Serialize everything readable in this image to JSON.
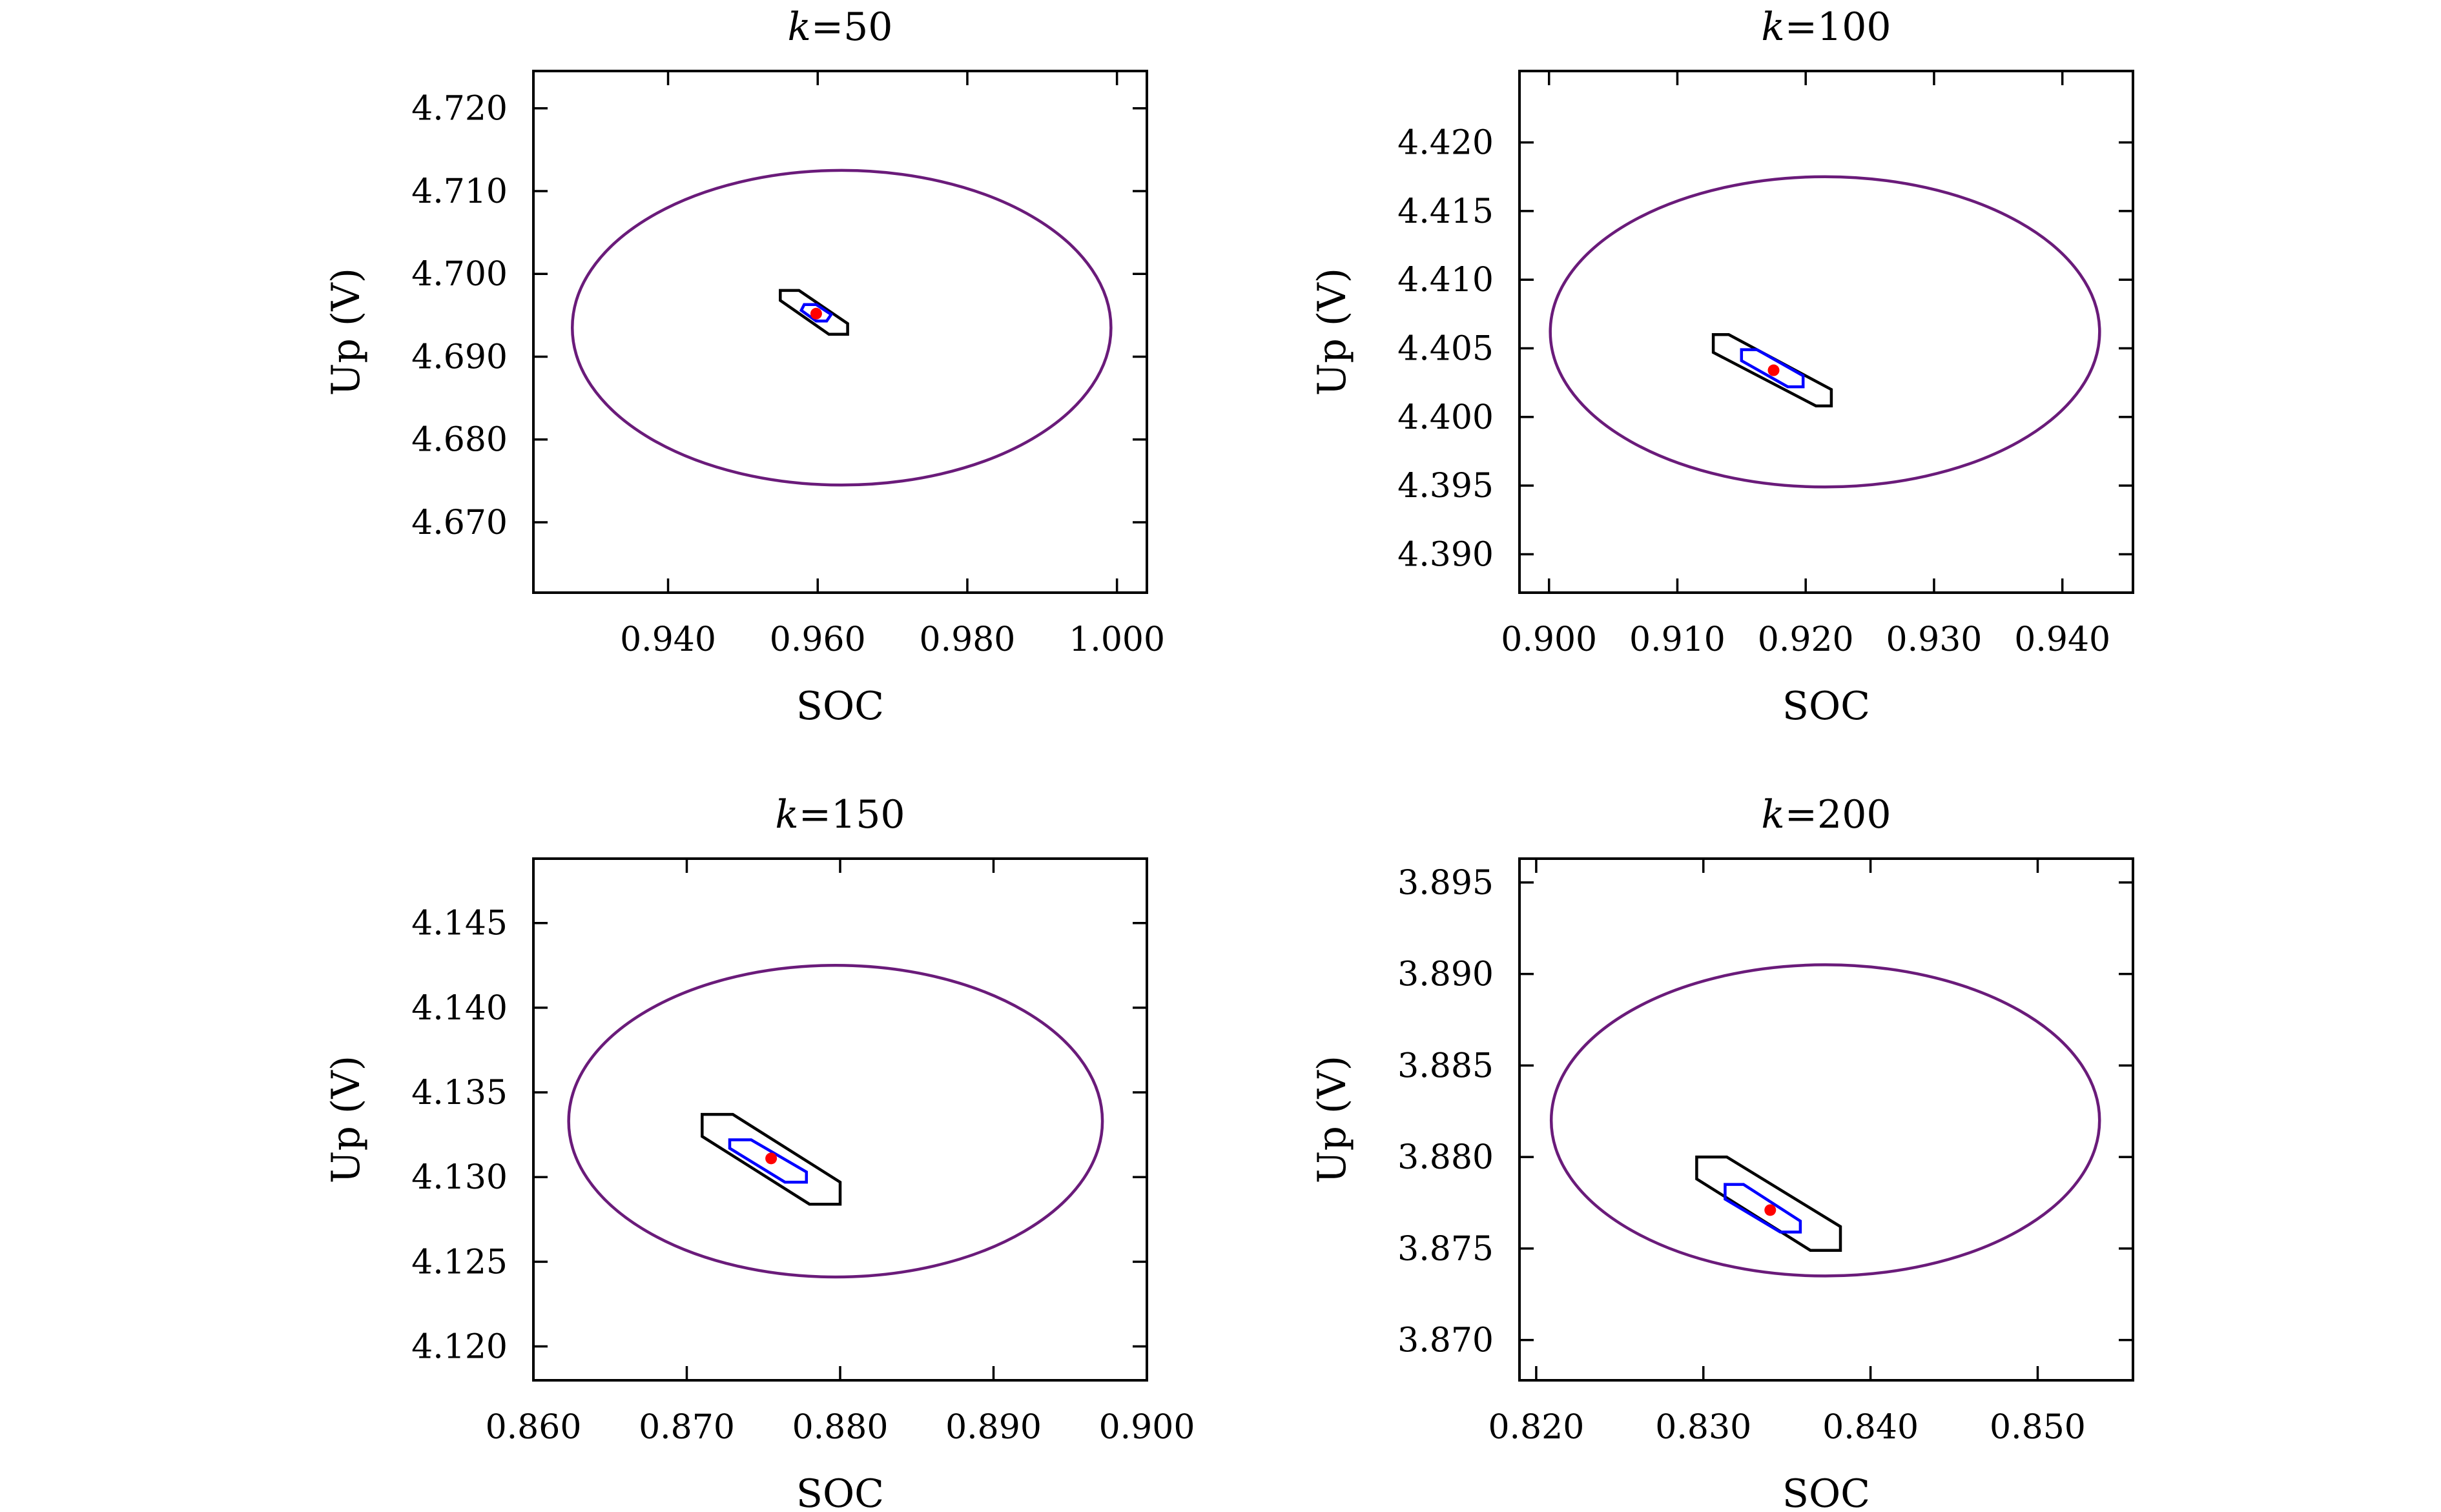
{
  "chart_data": [
    {
      "type": "scatter",
      "title_prefix": "k",
      "title": "=50",
      "xlabel": "SOC",
      "ylabel": "Up (V)",
      "xlim": [
        0.922,
        1.004
      ],
      "ylim": [
        4.6615,
        4.7245
      ],
      "xticks": [
        "0.940",
        "0.960",
        "0.980",
        "1.000"
      ],
      "yticks": [
        "4.670",
        "4.680",
        "4.690",
        "4.700",
        "4.710",
        "4.720"
      ],
      "ellipse": {
        "center": [
          0.9632,
          4.6935
        ],
        "semi_axes": [
          0.036,
          0.019
        ],
        "color": "#6a1b7a"
      },
      "outer_polygon": {
        "points": [
          [
            0.955,
            4.698
          ],
          [
            0.9575,
            4.698
          ],
          [
            0.964,
            4.694
          ],
          [
            0.964,
            4.6927
          ],
          [
            0.9615,
            4.6927
          ],
          [
            0.955,
            4.6968
          ]
        ],
        "color": "#000000"
      },
      "inner_polygon": {
        "points": [
          [
            0.9582,
            4.6963
          ],
          [
            0.9598,
            4.6963
          ],
          [
            0.9618,
            4.6951
          ],
          [
            0.9612,
            4.6943
          ],
          [
            0.9598,
            4.6943
          ],
          [
            0.9578,
            4.6956
          ]
        ],
        "color": "#0000ff"
      },
      "point": {
        "x": 0.9598,
        "y": 4.6952,
        "color": "#ff0000"
      }
    },
    {
      "type": "scatter",
      "title_prefix": "k",
      "title": "=100",
      "xlabel": "SOC",
      "ylabel": "Up (V)",
      "xlim": [
        0.8977,
        0.9455
      ],
      "ylim": [
        4.3872,
        4.4252
      ],
      "xticks": [
        "0.900",
        "0.910",
        "0.920",
        "0.930",
        "0.940"
      ],
      "yticks": [
        "4.390",
        "4.395",
        "4.400",
        "4.405",
        "4.410",
        "4.415",
        "4.420"
      ],
      "ellipse": {
        "center": [
          0.9215,
          4.4062
        ],
        "semi_axes": [
          0.0214,
          0.0113
        ],
        "color": "#6a1b7a"
      },
      "outer_polygon": {
        "points": [
          [
            0.9128,
            4.406
          ],
          [
            0.914,
            4.406
          ],
          [
            0.922,
            4.402
          ],
          [
            0.922,
            4.4008
          ],
          [
            0.9208,
            4.4008
          ],
          [
            0.9128,
            4.4047
          ]
        ],
        "color": "#000000"
      },
      "inner_polygon": {
        "points": [
          [
            0.915,
            4.4049
          ],
          [
            0.9162,
            4.4049
          ],
          [
            0.9198,
            4.403
          ],
          [
            0.9198,
            4.4022
          ],
          [
            0.9186,
            4.4022
          ],
          [
            0.915,
            4.4041
          ]
        ],
        "color": "#0000ff"
      },
      "point": {
        "x": 0.9175,
        "y": 4.4034,
        "color": "#ff0000"
      }
    },
    {
      "type": "scatter",
      "title_prefix": "k",
      "title": "=150",
      "xlabel": "SOC",
      "ylabel": "Up (V)",
      "xlim": [
        0.86,
        0.9
      ],
      "ylim": [
        4.118,
        4.1488
      ],
      "xticks": [
        "0.860",
        "0.870",
        "0.880",
        "0.890",
        "0.900"
      ],
      "yticks": [
        "4.120",
        "4.125",
        "4.130",
        "4.135",
        "4.140",
        "4.145"
      ],
      "ellipse": {
        "center": [
          0.8797,
          4.1333
        ],
        "semi_axes": [
          0.0174,
          0.0092
        ],
        "color": "#6a1b7a"
      },
      "outer_polygon": {
        "points": [
          [
            0.871,
            4.1337
          ],
          [
            0.873,
            4.1337
          ],
          [
            0.88,
            4.1297
          ],
          [
            0.88,
            4.1284
          ],
          [
            0.878,
            4.1284
          ],
          [
            0.871,
            4.1324
          ]
        ],
        "color": "#000000"
      },
      "inner_polygon": {
        "points": [
          [
            0.8728,
            4.1322
          ],
          [
            0.8742,
            4.1322
          ],
          [
            0.8778,
            4.1303
          ],
          [
            0.8778,
            4.1297
          ],
          [
            0.8764,
            4.1297
          ],
          [
            0.8728,
            4.1317
          ]
        ],
        "color": "#0000ff"
      },
      "point": {
        "x": 0.8755,
        "y": 4.1311,
        "color": "#ff0000"
      }
    },
    {
      "type": "scatter",
      "title_prefix": "k",
      "title": "=200",
      "xlabel": "SOC",
      "ylabel": "Up (V)",
      "xlim": [
        0.819,
        0.8557
      ],
      "ylim": [
        3.8678,
        3.8963
      ],
      "xticks": [
        "0.820",
        "0.830",
        "0.840",
        "0.850"
      ],
      "yticks": [
        "3.870",
        "3.875",
        "3.880",
        "3.885",
        "3.890",
        "3.895"
      ],
      "ellipse": {
        "center": [
          0.8373,
          3.882
        ],
        "semi_axes": [
          0.0164,
          0.0085
        ],
        "color": "#6a1b7a"
      },
      "outer_polygon": {
        "points": [
          [
            0.8296,
            3.88
          ],
          [
            0.8314,
            3.88
          ],
          [
            0.8382,
            3.8762
          ],
          [
            0.8382,
            3.8749
          ],
          [
            0.8364,
            3.8749
          ],
          [
            0.8296,
            3.8788
          ]
        ],
        "color": "#000000"
      },
      "inner_polygon": {
        "points": [
          [
            0.8313,
            3.8785
          ],
          [
            0.8324,
            3.8785
          ],
          [
            0.8358,
            3.8765
          ],
          [
            0.8358,
            3.8759
          ],
          [
            0.8346,
            3.8759
          ],
          [
            0.8313,
            3.8777
          ]
        ],
        "color": "#0000ff"
      },
      "point": {
        "x": 0.834,
        "y": 3.8771,
        "color": "#ff0000"
      }
    }
  ]
}
